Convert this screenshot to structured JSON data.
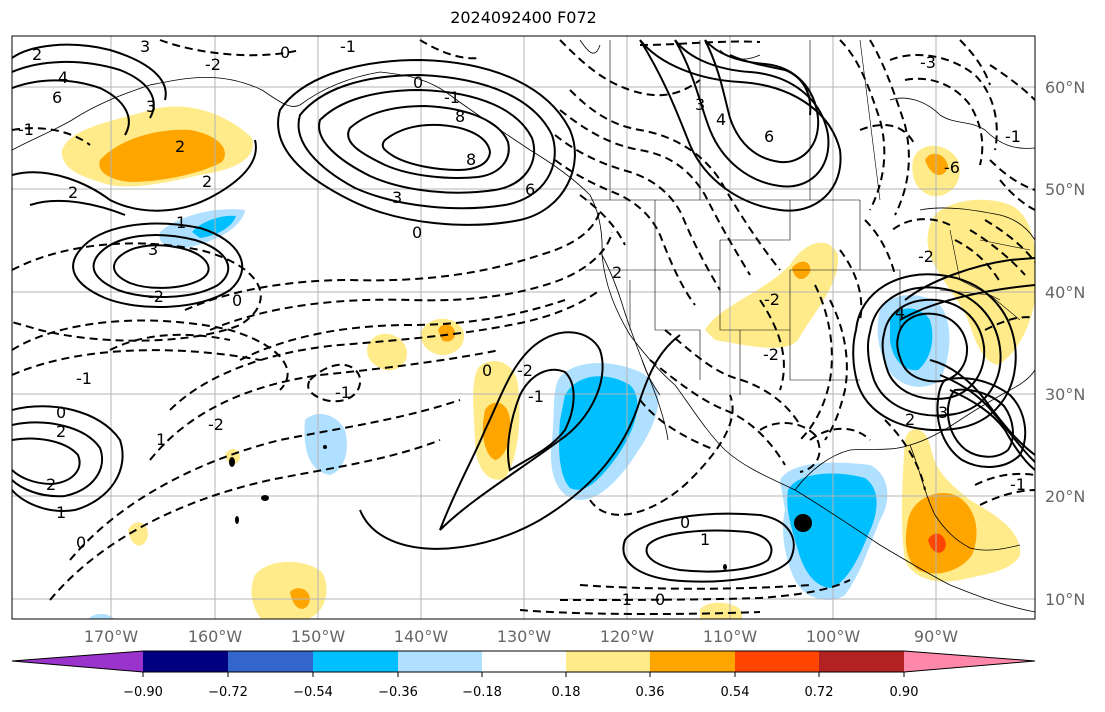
{
  "title": "2024092400 F072",
  "longitude_labels": [
    "170°W",
    "160°W",
    "150°W",
    "140°W",
    "130°W",
    "120°W",
    "110°W",
    "100°W",
    "90°W"
  ],
  "latitude_labels": [
    "60°N",
    "50°N",
    "40°N",
    "30°N",
    "20°N",
    "10°N"
  ],
  "contour_labels": {
    "c1": "2",
    "c2": "3",
    "c3": "4",
    "c4": "6",
    "c5": "8",
    "c6": "2",
    "c7": "3",
    "c8": "-1",
    "c9": "-2",
    "c10": "0",
    "c11": "-1",
    "c12": "0",
    "c13": "2",
    "c14": "2",
    "c15": "1",
    "c16": "0",
    "c17": "-1",
    "c18": "-2",
    "c19": "8",
    "c20": "6",
    "c21": "3",
    "c22": "0",
    "c23": "-1",
    "c24": "0",
    "c25": "1",
    "c26": "-2",
    "c27": "-1",
    "c28": "0",
    "c29": "2",
    "c30": "-2",
    "c31": "-1",
    "c32": "1",
    "c33": "0",
    "c34": "-1",
    "c35": "2",
    "c36": "3",
    "c37": "4",
    "c38": "6",
    "c39": "-3",
    "c40": "-1",
    "c41": "-6",
    "c42": "-2",
    "c43": "1",
    "c44": "-2",
    "c45": "3",
    "c46": "4",
    "c47": "2",
    "c48": "0",
    "c49": "0",
    "c50": "-1"
  },
  "colorbar": {
    "tick_labels": [
      "−0.90",
      "−0.72",
      "−0.54",
      "−0.36",
      "−0.18",
      "0.18",
      "0.36",
      "0.54",
      "0.72",
      "0.90"
    ],
    "colors": [
      "#9933cc",
      "#000080",
      "#3366cc",
      "#00bfff",
      "#b0e0ff",
      "#ffffff",
      "#ffeb8a",
      "#ffa500",
      "#ff4500",
      "#b22222",
      "#ff88aa"
    ]
  }
}
